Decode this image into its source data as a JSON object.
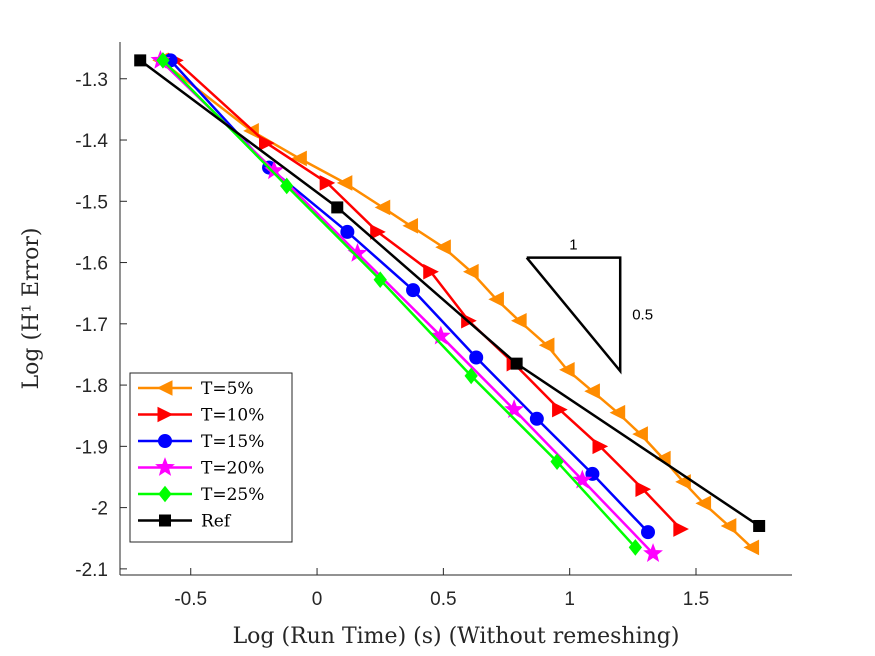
{
  "chart_data": {
    "type": "line",
    "title": "",
    "xlabel": "Log (Run Time) (s) (Without remeshing)",
    "ylabel": "Log (H¹ Error)",
    "xlim": [
      -0.78,
      1.88
    ],
    "ylim": [
      -2.11,
      -1.24
    ],
    "x_ticks": [
      -0.5,
      0,
      0.5,
      1,
      1.5
    ],
    "x_tick_labels": [
      "-0.5",
      "0",
      "0.5",
      "1",
      "1.5"
    ],
    "y_ticks": [
      -1.3,
      -1.4,
      -1.5,
      -1.6,
      -1.7,
      -1.8,
      -1.9,
      -2.0,
      -2.1
    ],
    "y_tick_labels": [
      "-1.3",
      "-1.4",
      "-1.5",
      "-1.6",
      "-1.7",
      "-1.8",
      "-1.9",
      "-2",
      "-2.1"
    ],
    "grid": false,
    "legend_position": "bottom-left",
    "series": [
      {
        "name": "T=5%",
        "color": "#ff8c00",
        "marker": "triangle-left",
        "x": [
          -0.62,
          -0.26,
          -0.07,
          0.11,
          0.26,
          0.37,
          0.5,
          0.61,
          0.71,
          0.8,
          0.91,
          0.99,
          1.09,
          1.19,
          1.28,
          1.37,
          1.45,
          1.53,
          1.63,
          1.72
        ],
        "y": [
          -1.27,
          -1.385,
          -1.43,
          -1.47,
          -1.51,
          -1.54,
          -1.575,
          -1.615,
          -1.66,
          -1.695,
          -1.735,
          -1.775,
          -1.81,
          -1.845,
          -1.88,
          -1.92,
          -1.958,
          -1.993,
          -2.03,
          -2.065
        ]
      },
      {
        "name": "T=10%",
        "color": "#ff0000",
        "marker": "triangle-right",
        "x": [
          -0.56,
          -0.2,
          0.04,
          0.24,
          0.45,
          0.6,
          0.78,
          0.96,
          1.12,
          1.29,
          1.44
        ],
        "y": [
          -1.27,
          -1.405,
          -1.47,
          -1.55,
          -1.615,
          -1.695,
          -1.765,
          -1.84,
          -1.9,
          -1.97,
          -2.035
        ]
      },
      {
        "name": "T=15%",
        "color": "#0000ff",
        "marker": "circle",
        "x": [
          -0.58,
          -0.19,
          0.12,
          0.38,
          0.63,
          0.87,
          1.09,
          1.31
        ],
        "y": [
          -1.27,
          -1.445,
          -1.55,
          -1.645,
          -1.755,
          -1.855,
          -1.945,
          -2.04
        ]
      },
      {
        "name": "T=20%",
        "color": "#ff00ff",
        "marker": "star",
        "x": [
          -0.62,
          -0.17,
          0.16,
          0.49,
          0.78,
          1.05,
          1.33
        ],
        "y": [
          -1.27,
          -1.45,
          -1.585,
          -1.72,
          -1.84,
          -1.955,
          -2.075
        ]
      },
      {
        "name": "T=25%",
        "color": "#00ff00",
        "marker": "diamond",
        "x": [
          -0.61,
          -0.12,
          0.25,
          0.61,
          0.95,
          1.26
        ],
        "y": [
          -1.27,
          -1.475,
          -1.628,
          -1.785,
          -1.925,
          -2.065
        ]
      },
      {
        "name": "Ref",
        "color": "#000000",
        "marker": "square",
        "x": [
          -0.7,
          0.08,
          0.79,
          1.75
        ],
        "y": [
          -1.27,
          -1.51,
          -1.765,
          -2.03
        ]
      }
    ],
    "slope_triangle": {
      "x": [
        0.83,
        1.2
      ],
      "y": [
        -1.592,
        -1.777
      ],
      "run_label": "1",
      "rise_label": "0.5"
    }
  }
}
